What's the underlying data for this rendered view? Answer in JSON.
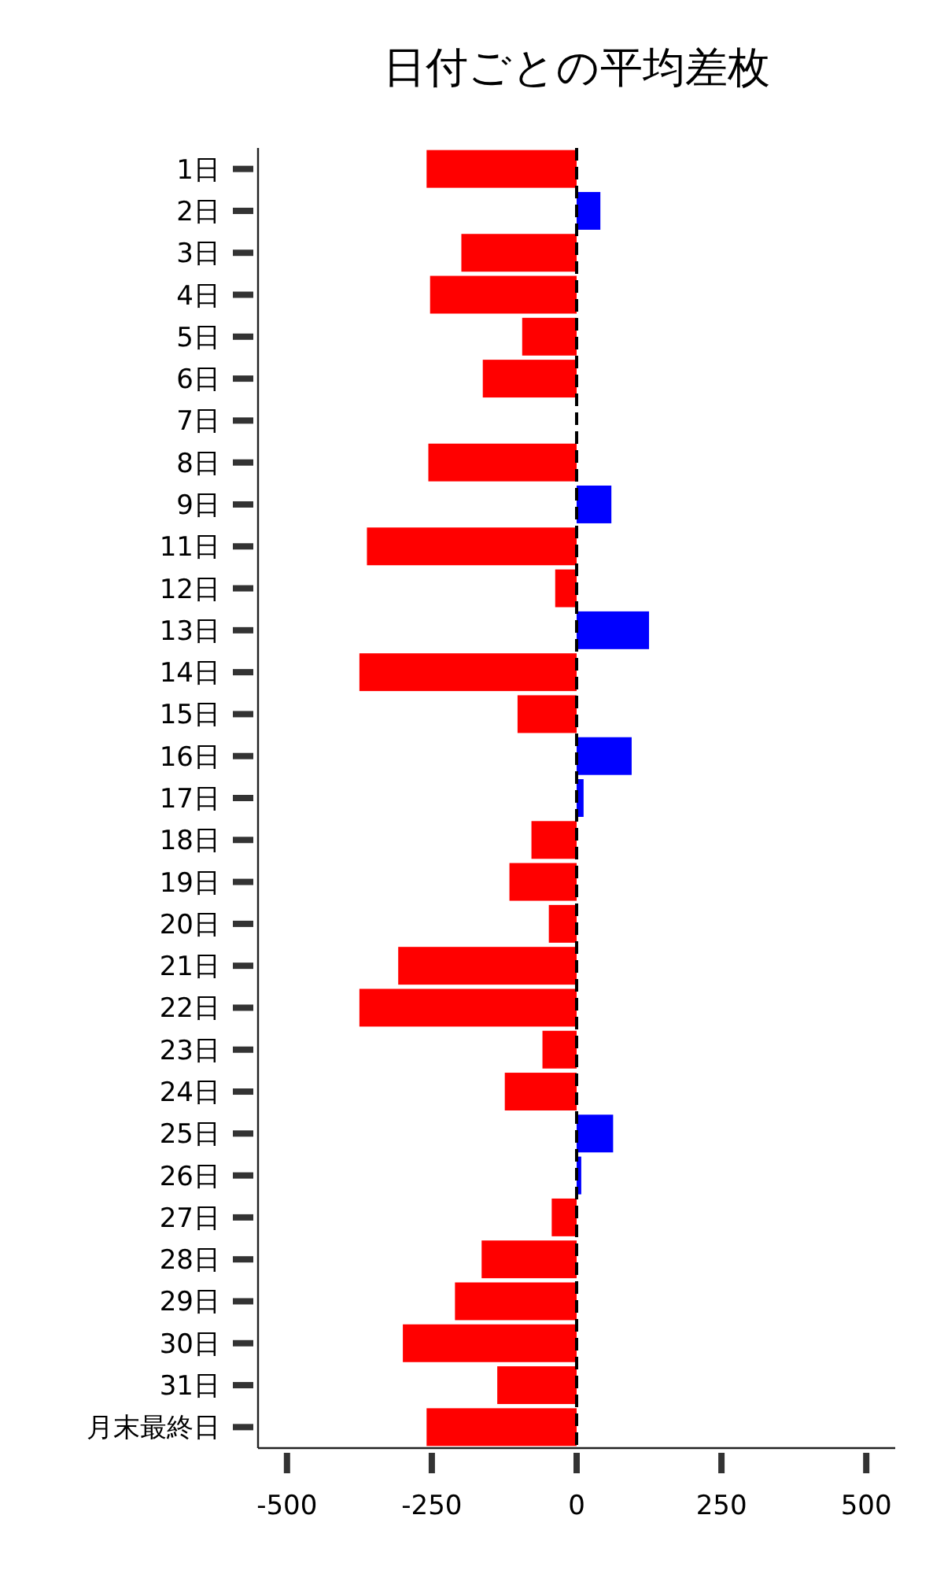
{
  "chart_data": {
    "type": "bar",
    "orientation": "horizontal",
    "title": "日付ごとの平均差枚",
    "categories": [
      "1日",
      "2日",
      "3日",
      "4日",
      "5日",
      "6日",
      "7日",
      "8日",
      "9日",
      "11日",
      "12日",
      "13日",
      "14日",
      "15日",
      "16日",
      "17日",
      "18日",
      "19日",
      "20日",
      "21日",
      "22日",
      "23日",
      "24日",
      "25日",
      "26日",
      "27日",
      "28日",
      "29日",
      "30日",
      "31日",
      "月末最終日"
    ],
    "values": [
      -259,
      41,
      -199,
      -253,
      -94,
      -162,
      0,
      -256,
      60,
      -362,
      -37,
      125,
      -375,
      -102,
      95,
      12,
      -78,
      -116,
      -48,
      -308,
      -375,
      -59,
      -124,
      63,
      8,
      -43,
      -164,
      -210,
      -300,
      -137,
      -259
    ],
    "colors": [
      "#ff0000",
      "#0000ff",
      "#ff0000",
      "#ff0000",
      "#ff0000",
      "#ff0000",
      "#ff0000",
      "#ff0000",
      "#0000ff",
      "#ff0000",
      "#ff0000",
      "#0000ff",
      "#ff0000",
      "#ff0000",
      "#0000ff",
      "#0000ff",
      "#ff0000",
      "#ff0000",
      "#ff0000",
      "#ff0000",
      "#ff0000",
      "#ff0000",
      "#ff0000",
      "#0000ff",
      "#0000ff",
      "#ff0000",
      "#ff0000",
      "#ff0000",
      "#ff0000",
      "#ff0000",
      "#ff0000"
    ],
    "xlim": [
      -550,
      550
    ],
    "xticks": [
      -500,
      -250,
      0,
      250,
      500
    ],
    "ref_lines": [
      {
        "axis": "x",
        "value": 0,
        "color": "#000000",
        "line_style": "dashed"
      }
    ],
    "grid": false
  }
}
